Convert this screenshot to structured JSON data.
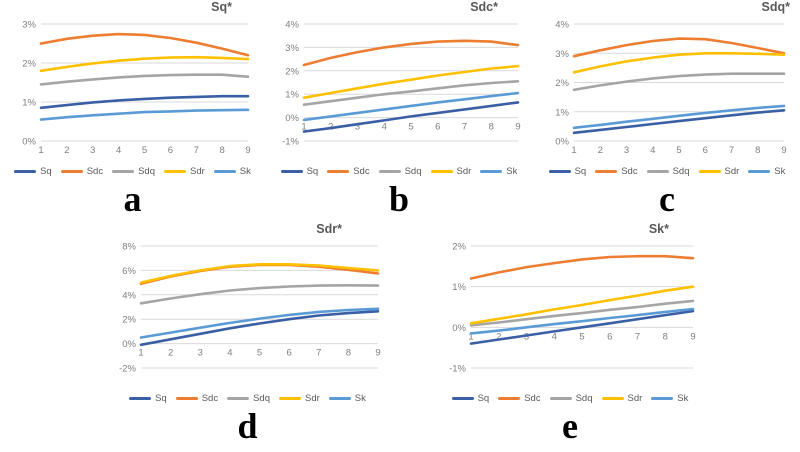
{
  "legend": {
    "items": [
      {
        "label": "Sq",
        "color": "#3a5fa5"
      },
      {
        "label": "Sdc",
        "color": "#ed7d31"
      },
      {
        "label": "Sdq",
        "color": "#a5a5a5"
      },
      {
        "label": "Sdr",
        "color": "#ffc000"
      },
      {
        "label": "Sk",
        "color": "#5b9bd5"
      }
    ],
    "position": "bottom"
  },
  "figure": {
    "panels": [
      {
        "letter": "a"
      },
      {
        "letter": "b"
      },
      {
        "letter": "c"
      },
      {
        "letter": "d"
      },
      {
        "letter": "e"
      }
    ]
  },
  "chart_data": [
    {
      "type": "line",
      "title": "Sq*",
      "panel": "a",
      "x": [
        1,
        2,
        3,
        4,
        5,
        6,
        7,
        8,
        9
      ],
      "ylim": [
        0,
        3
      ],
      "ytick_step": 1,
      "ytick_suffix": "%",
      "grid": true,
      "legend_position": "bottom",
      "series": [
        {
          "name": "Sq",
          "values": [
            0.85,
            0.92,
            0.99,
            1.04,
            1.08,
            1.11,
            1.13,
            1.15,
            1.15
          ]
        },
        {
          "name": "Sdc",
          "values": [
            2.5,
            2.62,
            2.7,
            2.74,
            2.72,
            2.64,
            2.52,
            2.37,
            2.2
          ]
        },
        {
          "name": "Sdq",
          "values": [
            1.45,
            1.52,
            1.58,
            1.63,
            1.67,
            1.69,
            1.7,
            1.7,
            1.65
          ]
        },
        {
          "name": "Sdr",
          "values": [
            1.8,
            1.9,
            1.99,
            2.06,
            2.11,
            2.14,
            2.15,
            2.13,
            2.1
          ]
        },
        {
          "name": "Sk",
          "values": [
            0.55,
            0.61,
            0.66,
            0.7,
            0.74,
            0.76,
            0.78,
            0.79,
            0.8
          ]
        }
      ]
    },
    {
      "type": "line",
      "title": "Sdc*",
      "panel": "b",
      "x": [
        1,
        2,
        3,
        4,
        5,
        6,
        7,
        8,
        9
      ],
      "ylim": [
        -1,
        4
      ],
      "ytick_step": 1,
      "ytick_suffix": "%",
      "grid": true,
      "legend_position": "bottom",
      "series": [
        {
          "name": "Sq",
          "values": [
            -0.6,
            -0.45,
            -0.28,
            -0.12,
            0.05,
            0.2,
            0.35,
            0.5,
            0.65
          ]
        },
        {
          "name": "Sdc",
          "values": [
            2.25,
            2.55,
            2.8,
            3.0,
            3.15,
            3.25,
            3.28,
            3.25,
            3.1
          ]
        },
        {
          "name": "Sdq",
          "values": [
            0.55,
            0.7,
            0.85,
            1.0,
            1.12,
            1.25,
            1.38,
            1.48,
            1.55
          ]
        },
        {
          "name": "Sdr",
          "values": [
            0.85,
            1.05,
            1.25,
            1.45,
            1.62,
            1.8,
            1.95,
            2.1,
            2.2
          ]
        },
        {
          "name": "Sk",
          "values": [
            -0.1,
            0.05,
            0.2,
            0.35,
            0.5,
            0.65,
            0.78,
            0.92,
            1.05
          ]
        }
      ]
    },
    {
      "type": "line",
      "title": "Sdq*",
      "panel": "c",
      "x": [
        1,
        2,
        3,
        4,
        5,
        6,
        7,
        8,
        9
      ],
      "ylim": [
        0,
        4
      ],
      "ytick_step": 1,
      "ytick_suffix": "%",
      "grid": true,
      "legend_position": "bottom",
      "series": [
        {
          "name": "Sq",
          "values": [
            0.28,
            0.38,
            0.48,
            0.58,
            0.68,
            0.78,
            0.88,
            0.97,
            1.05
          ]
        },
        {
          "name": "Sdc",
          "values": [
            2.9,
            3.1,
            3.28,
            3.42,
            3.5,
            3.48,
            3.35,
            3.18,
            3.0
          ]
        },
        {
          "name": "Sdq",
          "values": [
            1.75,
            1.9,
            2.03,
            2.14,
            2.22,
            2.27,
            2.3,
            2.3,
            2.3
          ]
        },
        {
          "name": "Sdr",
          "values": [
            2.35,
            2.55,
            2.72,
            2.85,
            2.95,
            3.0,
            3.0,
            2.98,
            2.95
          ]
        },
        {
          "name": "Sk",
          "values": [
            0.45,
            0.55,
            0.66,
            0.76,
            0.86,
            0.96,
            1.05,
            1.13,
            1.2
          ]
        }
      ]
    },
    {
      "type": "line",
      "title": "Sdr*",
      "panel": "d",
      "x": [
        1,
        2,
        3,
        4,
        5,
        6,
        7,
        8,
        9
      ],
      "ylim": [
        -2,
        8
      ],
      "ytick_step": 2,
      "ytick_suffix": "%",
      "grid": true,
      "legend_position": "bottom",
      "series": [
        {
          "name": "Sq",
          "values": [
            -0.1,
            0.35,
            0.8,
            1.25,
            1.65,
            2.0,
            2.3,
            2.5,
            2.65
          ]
        },
        {
          "name": "Sdc",
          "values": [
            4.9,
            5.5,
            5.95,
            6.3,
            6.45,
            6.45,
            6.3,
            6.05,
            5.75
          ]
        },
        {
          "name": "Sdq",
          "values": [
            3.3,
            3.7,
            4.05,
            4.35,
            4.55,
            4.68,
            4.75,
            4.78,
            4.75
          ]
        },
        {
          "name": "Sdr",
          "values": [
            5.0,
            5.55,
            6.0,
            6.35,
            6.5,
            6.5,
            6.4,
            6.2,
            6.0
          ]
        },
        {
          "name": "Sk",
          "values": [
            0.5,
            0.9,
            1.3,
            1.7,
            2.05,
            2.35,
            2.6,
            2.75,
            2.85
          ]
        }
      ]
    },
    {
      "type": "line",
      "title": "Sk*",
      "panel": "e",
      "x": [
        1,
        2,
        3,
        4,
        5,
        6,
        7,
        8,
        9
      ],
      "ylim": [
        -1,
        2
      ],
      "ytick_step": 1,
      "ytick_suffix": "%",
      "grid": true,
      "legend_position": "bottom",
      "series": [
        {
          "name": "Sq",
          "values": [
            -0.4,
            -0.3,
            -0.2,
            -0.1,
            0.0,
            0.1,
            0.2,
            0.3,
            0.4
          ]
        },
        {
          "name": "Sdc",
          "values": [
            1.2,
            1.35,
            1.48,
            1.58,
            1.67,
            1.73,
            1.75,
            1.75,
            1.7
          ]
        },
        {
          "name": "Sdq",
          "values": [
            0.05,
            0.12,
            0.2,
            0.28,
            0.35,
            0.43,
            0.5,
            0.58,
            0.65
          ]
        },
        {
          "name": "Sdr",
          "values": [
            0.1,
            0.21,
            0.32,
            0.44,
            0.55,
            0.67,
            0.78,
            0.9,
            1.0
          ]
        },
        {
          "name": "Sk",
          "values": [
            -0.15,
            -0.08,
            0.0,
            0.08,
            0.15,
            0.23,
            0.3,
            0.38,
            0.45
          ]
        }
      ]
    }
  ]
}
